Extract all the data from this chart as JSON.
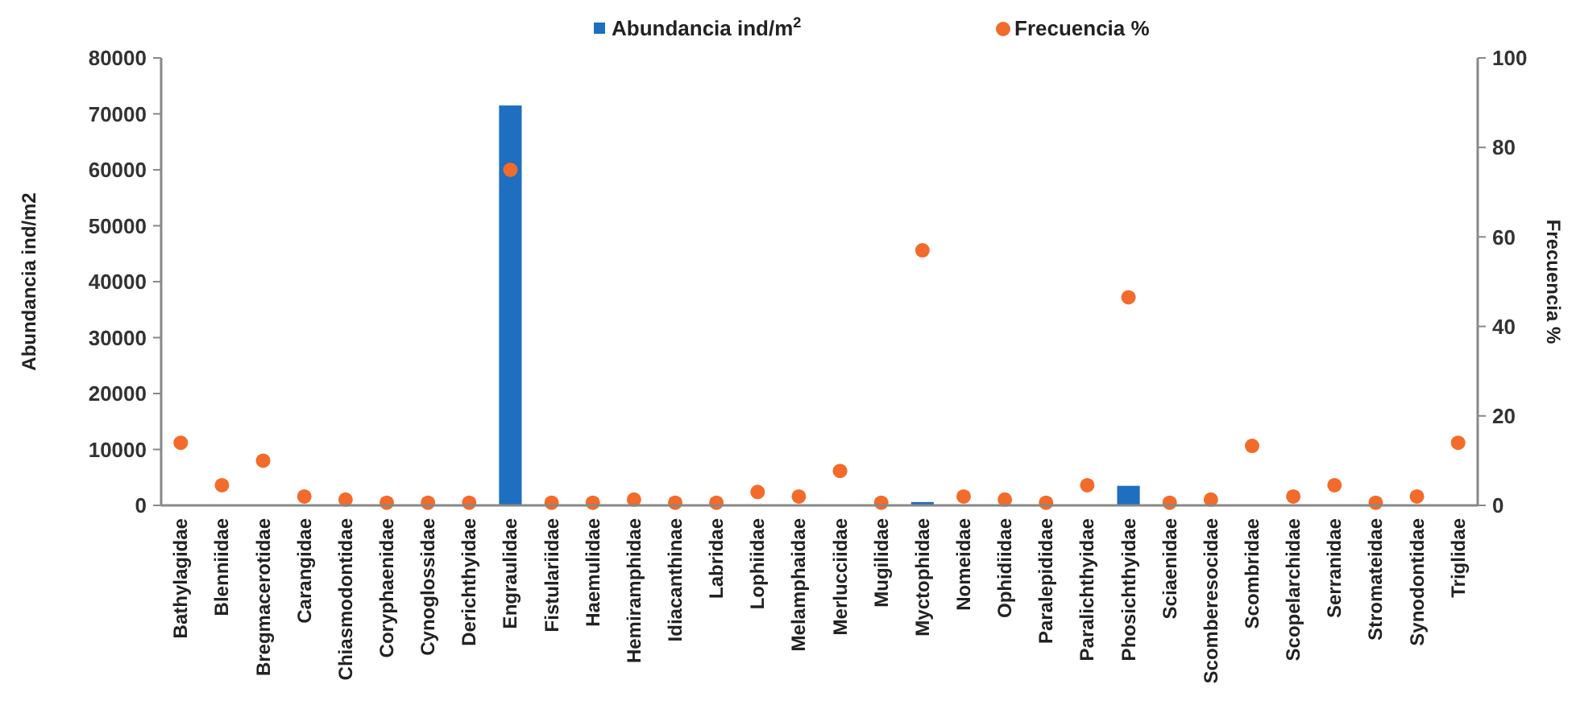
{
  "chart_data": {
    "type": "bar",
    "categories": [
      "Bathylagidae",
      "Blenniidae",
      "Bregmacerotidae",
      "Carangidae",
      "Chiasmodontidae",
      "Coryphaenidae",
      "Cynoglossidae",
      "Derichthyidae",
      "Engraulidae",
      "Fistulariidae",
      "Haemulidae",
      "Hemiramphidae",
      "Idiacanthinae",
      "Labridae",
      "Lophiidae",
      "Melamphaidae",
      "Merlucciidae",
      "Mugilidae",
      "Myctophidae",
      "Nomeidae",
      "Ophidiidae",
      "Paralepididae",
      "Paralichthyidae",
      "Phosichthyidae",
      "Sciaenidae",
      "Scomberesocidae",
      "Scombridae",
      "Scopelarchidae",
      "Serranidae",
      "Stromateidae",
      "Synodontidae",
      "Triglidae"
    ],
    "series": [
      {
        "name": "Abundancia ind/m$^{2}$",
        "color": "#1f6fc0",
        "values": [
          0,
          0,
          0,
          0,
          0,
          0,
          0,
          0,
          71500,
          0,
          0,
          0,
          0,
          0,
          0,
          0,
          0,
          0,
          600,
          0,
          0,
          0,
          0,
          3500,
          0,
          0,
          0,
          0,
          0,
          0,
          0,
          0
        ]
      },
      {
        "name": "Frecuencia %",
        "type": "scatter",
        "axis": "y2",
        "color": "#f26b2a",
        "values": [
          14,
          4.5,
          10,
          2,
          1.3,
          0.6,
          0.6,
          0.6,
          75,
          0.6,
          0.6,
          1.3,
          0.6,
          0.6,
          3,
          2,
          7.7,
          0.6,
          57,
          2,
          1.3,
          0.6,
          4.5,
          46.5,
          0.6,
          1.3,
          13.3,
          2,
          4.5,
          0.6,
          2,
          14
        ]
      }
    ],
    "ylabel": "Abundancia ind/m2",
    "y2label": "Frecuencia %",
    "ylim": [
      0,
      80000
    ],
    "yticks": [
      0,
      10000,
      20000,
      30000,
      40000,
      50000,
      60000,
      70000,
      80000
    ],
    "y2lim": [
      0,
      100
    ],
    "y2ticks": [
      0,
      20,
      40,
      60,
      80,
      100
    ],
    "legend": "top",
    "marker": "circle",
    "grid": false
  }
}
